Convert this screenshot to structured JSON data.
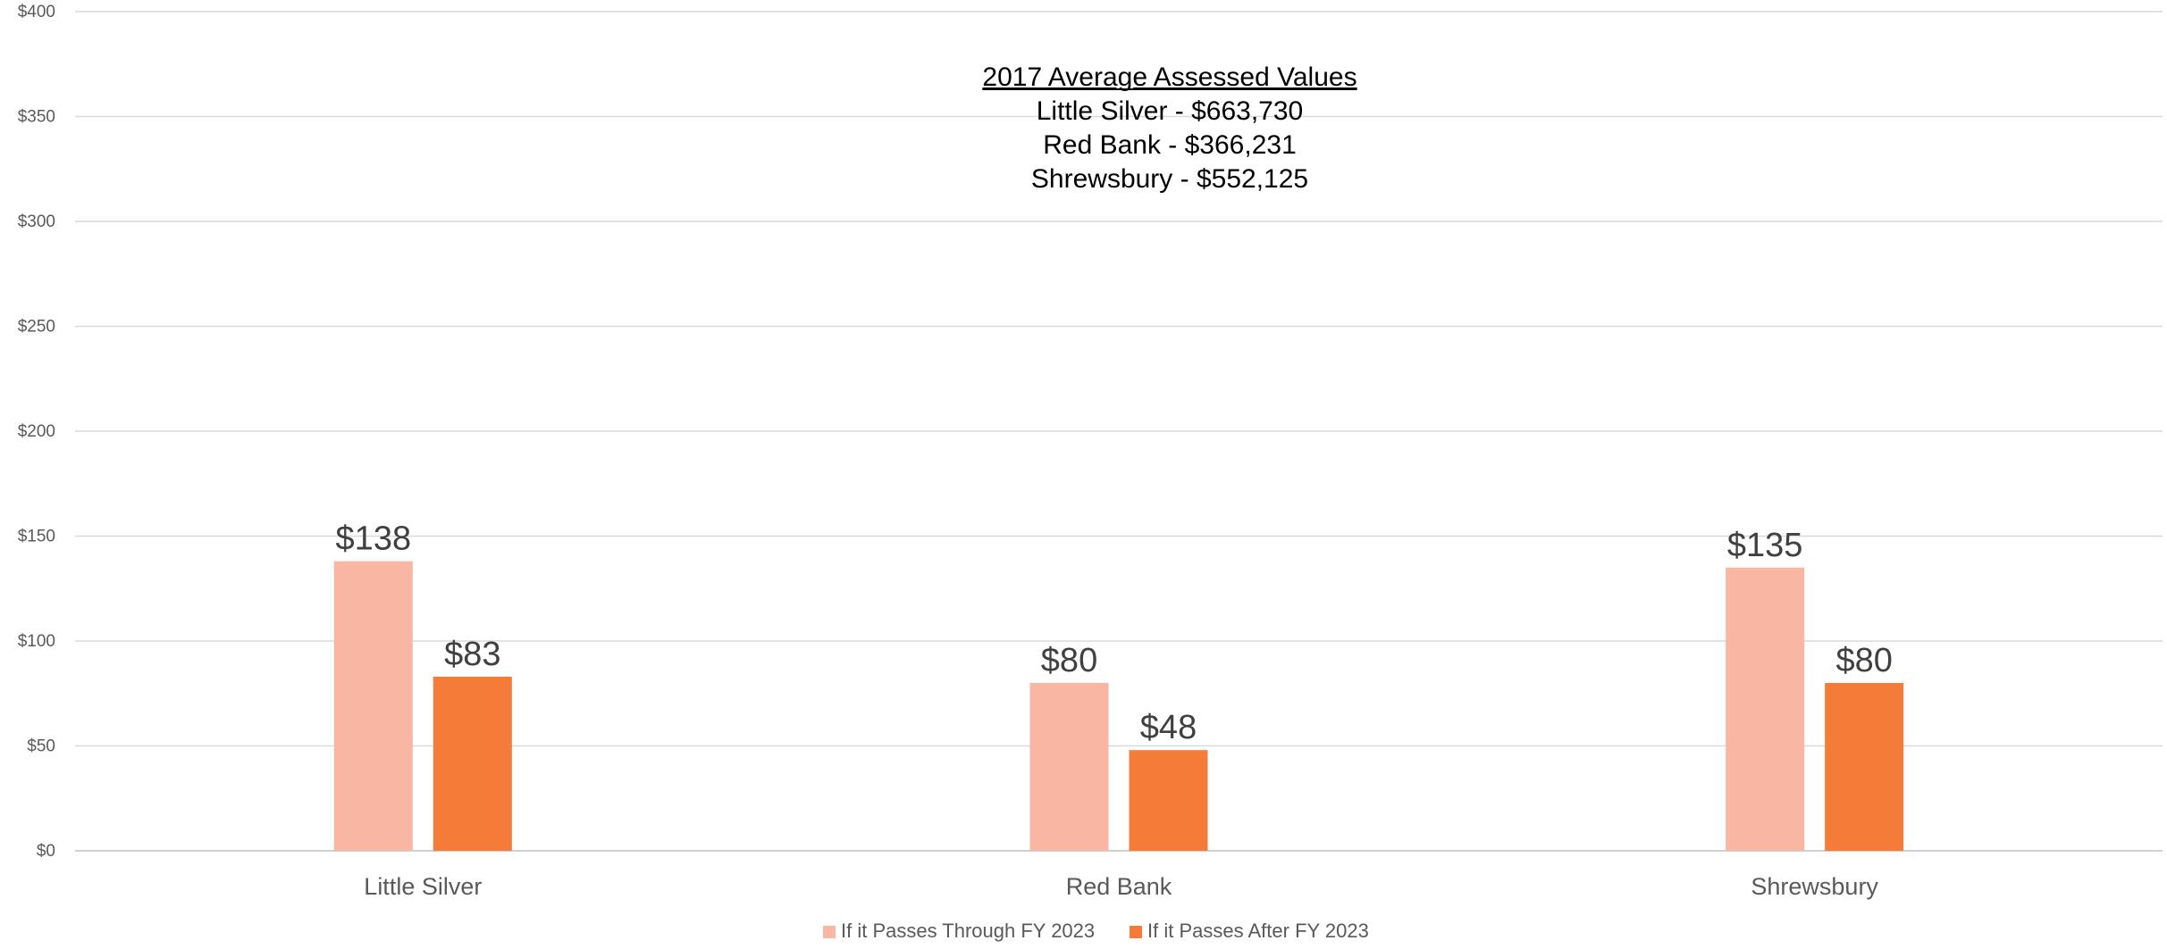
{
  "chart_data": {
    "type": "bar",
    "categories": [
      "Little Silver",
      "Red Bank",
      "Shrewsbury"
    ],
    "series": [
      {
        "name": "If it Passes Through FY 2023",
        "values": [
          138,
          80,
          135
        ],
        "color": "#F8B6A3"
      },
      {
        "name": "If it Passes After FY 2023",
        "values": [
          83,
          48,
          80
        ],
        "color": "#F57B38"
      }
    ],
    "data_labels": [
      [
        "$138",
        "$80",
        "$135"
      ],
      [
        "$83",
        "$48",
        "$80"
      ]
    ],
    "y_tick_labels": [
      "$0",
      "$50",
      "$100",
      "$150",
      "$200",
      "$250",
      "$300",
      "$350",
      "$400"
    ],
    "ylim": [
      0,
      400
    ],
    "y_tick_step": 50,
    "grid": true,
    "legend_position": "bottom",
    "annotation": {
      "title": "2017 Average Assessed Values",
      "lines": [
        "Little Silver - $663,730",
        "Red Bank - $366,231",
        "Shrewsbury - $552,125"
      ]
    }
  }
}
